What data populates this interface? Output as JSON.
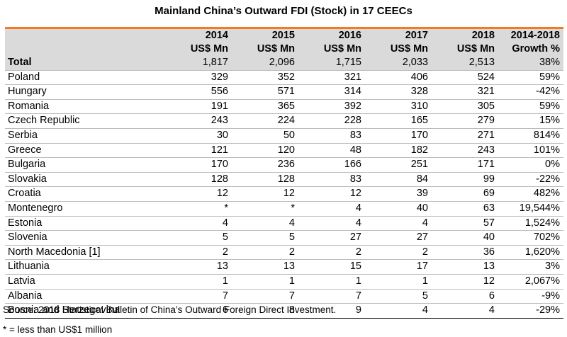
{
  "title": "Mainland China’s Outward FDI (Stock) in 17 CEECs",
  "columns": [
    {
      "year": "2014",
      "unit": "US$ Mn"
    },
    {
      "year": "2015",
      "unit": "US$ Mn"
    },
    {
      "year": "2016",
      "unit": "US$ Mn"
    },
    {
      "year": "2017",
      "unit": "US$ Mn"
    },
    {
      "year": "2018",
      "unit": "US$ Mn"
    },
    {
      "year": "2014-2018",
      "unit": "Growth %"
    }
  ],
  "rows": [
    {
      "name": "Total",
      "values": [
        "1,817",
        "2,096",
        "1,715",
        "2,033",
        "2,513",
        "38%"
      ]
    },
    {
      "name": "Poland",
      "values": [
        "329",
        "352",
        "321",
        "406",
        "524",
        "59%"
      ]
    },
    {
      "name": "Hungary",
      "values": [
        "556",
        "571",
        "314",
        "328",
        "321",
        "-42%"
      ]
    },
    {
      "name": "Romania",
      "values": [
        "191",
        "365",
        "392",
        "310",
        "305",
        "59%"
      ]
    },
    {
      "name": "Czech Republic",
      "values": [
        "243",
        "224",
        "228",
        "165",
        "279",
        "15%"
      ]
    },
    {
      "name": "Serbia",
      "values": [
        "30",
        "50",
        "83",
        "170",
        "271",
        "814%"
      ]
    },
    {
      "name": "Greece",
      "values": [
        "121",
        "120",
        "48",
        "182",
        "243",
        "101%"
      ]
    },
    {
      "name": "Bulgaria",
      "values": [
        "170",
        "236",
        "166",
        "251",
        "171",
        "0%"
      ]
    },
    {
      "name": "Slovakia",
      "values": [
        "128",
        "128",
        "83",
        "84",
        "99",
        "-22%"
      ]
    },
    {
      "name": "Croatia",
      "values": [
        "12",
        "12",
        "12",
        "39",
        "69",
        "482%"
      ]
    },
    {
      "name": "Montenegro",
      "values": [
        "*",
        "*",
        "4",
        "40",
        "63",
        "19,544%"
      ]
    },
    {
      "name": "Estonia",
      "values": [
        "4",
        "4",
        "4",
        "4",
        "57",
        "1,524%"
      ]
    },
    {
      "name": "Slovenia",
      "values": [
        "5",
        "5",
        "27",
        "27",
        "40",
        "702%"
      ]
    },
    {
      "name": "North Macedonia [1]",
      "values": [
        "2",
        "2",
        "2",
        "2",
        "36",
        "1,620%"
      ]
    },
    {
      "name": "Lithuania",
      "values": [
        "13",
        "13",
        "15",
        "17",
        "13",
        "3%"
      ]
    },
    {
      "name": "Latvia",
      "values": [
        "1",
        "1",
        "1",
        "1",
        "12",
        "2,067%"
      ]
    },
    {
      "name": "Albania",
      "values": [
        "7",
        "7",
        "7",
        "5",
        "6",
        "-9%"
      ]
    },
    {
      "name": "Bosnia and Herzegovina",
      "values": [
        "6",
        "8",
        "9",
        "4",
        "4",
        "-29%"
      ]
    }
  ],
  "source": "Source: 2018 Statistical Bulletin of China’s Outward Foreign Direct Investment.",
  "footnote": "* = less than US$1 million",
  "colors": {
    "accent_rule": "#f47920",
    "header_bg": "#dadada"
  }
}
